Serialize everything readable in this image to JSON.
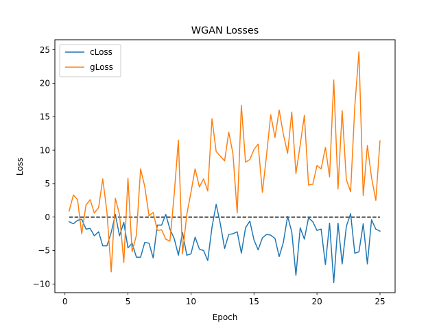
{
  "chart_data": {
    "type": "line",
    "title": "WGAN Losses",
    "xlabel": "Epoch",
    "ylabel": "Loss",
    "xlim": [
      -0.8,
      26.2
    ],
    "ylim": [
      -11.3,
      26.5
    ],
    "xticks": [
      0,
      5,
      10,
      15,
      20,
      25
    ],
    "yticks": [
      -10,
      -5,
      0,
      5,
      10,
      15,
      20,
      25
    ],
    "grid": false,
    "legend": "upper-left",
    "reference_line": {
      "y": 0,
      "x_range": [
        0.33,
        25.0
      ],
      "style": "dashed",
      "color": "#000000"
    },
    "series": [
      {
        "name": "cLoss",
        "color": "#1f77b4",
        "x": [
          0.33,
          0.67,
          1.0,
          1.33,
          1.67,
          2.0,
          2.33,
          2.67,
          3.0,
          3.33,
          3.67,
          4.0,
          4.33,
          4.67,
          5.0,
          5.33,
          5.67,
          6.0,
          6.33,
          6.67,
          7.0,
          7.33,
          7.67,
          8.0,
          8.33,
          8.67,
          9.0,
          9.33,
          9.67,
          10.0,
          10.33,
          10.67,
          11.0,
          11.33,
          11.67,
          12.0,
          12.33,
          12.67,
          13.0,
          13.33,
          13.67,
          14.0,
          14.33,
          14.67,
          15.0,
          15.33,
          15.67,
          16.0,
          16.33,
          16.67,
          17.0,
          17.33,
          17.67,
          18.0,
          18.33,
          18.67,
          19.0,
          19.33,
          19.67,
          20.0,
          20.33,
          20.67,
          21.0,
          21.33,
          21.67,
          22.0,
          22.33,
          22.67,
          23.0,
          23.33,
          23.67,
          24.0,
          24.33,
          24.67,
          25.0
        ],
        "values": [
          -0.7,
          -1.0,
          -0.5,
          -0.3,
          -1.8,
          -1.7,
          -2.8,
          -2.2,
          -4.3,
          -4.3,
          -2.3,
          0.4,
          -2.8,
          -0.8,
          -4.6,
          -3.9,
          -6.0,
          -6.0,
          -3.8,
          -3.9,
          -6.1,
          -1.2,
          -1.2,
          0.4,
          -1.8,
          -3.2,
          -5.7,
          -2.3,
          -5.7,
          -5.5,
          -3.0,
          -4.8,
          -5.0,
          -6.5,
          -1.5,
          1.9,
          -1.0,
          -4.7,
          -2.6,
          -2.5,
          -2.2,
          -5.4,
          -1.6,
          -0.6,
          -3.4,
          -4.9,
          -3.1,
          -2.6,
          -2.7,
          -3.2,
          -5.9,
          -3.8,
          0.1,
          -2.2,
          -8.7,
          -1.6,
          -3.3,
          -0.1,
          -0.7,
          -2.0,
          -1.8,
          -7.1,
          -0.9,
          -9.8,
          -0.9,
          -7.0,
          -1.4,
          0.5,
          -5.4,
          -5.2,
          -1.0,
          -7.0,
          -0.4,
          -1.8,
          -2.1
        ]
      },
      {
        "name": "gLoss",
        "color": "#ff7f0e",
        "x": [
          0.33,
          0.67,
          1.0,
          1.33,
          1.67,
          2.0,
          2.33,
          2.67,
          3.0,
          3.33,
          3.67,
          4.0,
          4.33,
          4.67,
          5.0,
          5.33,
          5.67,
          6.0,
          6.33,
          6.67,
          7.0,
          7.33,
          7.67,
          8.0,
          8.33,
          8.67,
          9.0,
          9.33,
          9.67,
          10.0,
          10.33,
          10.67,
          11.0,
          11.33,
          11.67,
          12.0,
          12.33,
          12.67,
          13.0,
          13.33,
          13.67,
          14.0,
          14.33,
          14.67,
          15.0,
          15.33,
          15.67,
          16.0,
          16.33,
          16.67,
          17.0,
          17.33,
          17.67,
          18.0,
          18.33,
          18.67,
          19.0,
          19.33,
          19.67,
          20.0,
          20.33,
          20.67,
          21.0,
          21.33,
          21.67,
          22.0,
          22.33,
          22.67,
          23.0,
          23.33,
          23.67,
          24.0,
          24.33,
          24.67,
          25.0
        ],
        "values": [
          0.9,
          3.3,
          2.6,
          -2.5,
          1.8,
          2.6,
          0.6,
          1.4,
          5.7,
          0.8,
          -8.2,
          2.8,
          0.4,
          -6.8,
          5.8,
          -5.2,
          -2.7,
          7.2,
          4.6,
          0.2,
          0.7,
          -2.0,
          -1.9,
          -3.3,
          -3.6,
          3.4,
          11.5,
          -5.5,
          0.4,
          3.7,
          7.2,
          4.5,
          5.7,
          3.9,
          14.7,
          9.8,
          9.1,
          8.4,
          12.7,
          9.5,
          0.6,
          16.7,
          8.2,
          8.6,
          10.1,
          10.9,
          3.7,
          9.3,
          15.3,
          11.9,
          16.0,
          12.4,
          9.5,
          15.7,
          6.5,
          10.8,
          15.2,
          4.8,
          4.9,
          7.7,
          7.2,
          10.4,
          6.0,
          20.5,
          4.2,
          15.9,
          5.6,
          3.8,
          16.5,
          24.7,
          3.2,
          10.7,
          5.9,
          2.5,
          11.4
        ]
      }
    ]
  }
}
